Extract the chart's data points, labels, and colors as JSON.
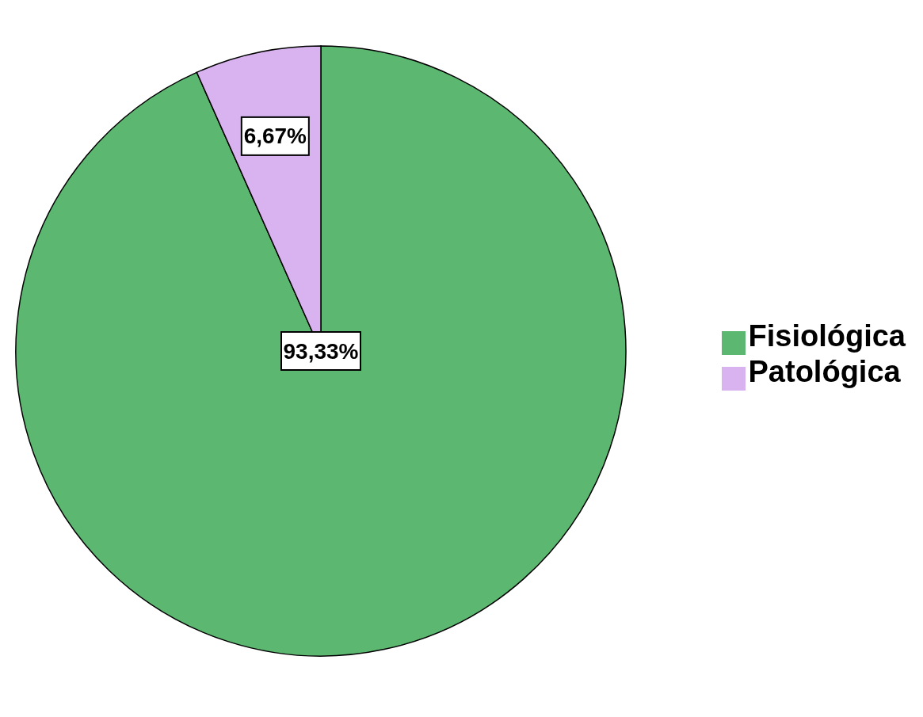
{
  "chart_data": {
    "type": "pie",
    "categories": [
      "Fisiológica",
      "Patológica"
    ],
    "values": [
      93.33,
      6.67
    ],
    "colors": [
      "#5cb870",
      "#d9b3f0"
    ],
    "value_labels": [
      "93,33%",
      "6,67%"
    ],
    "legend": "right"
  }
}
